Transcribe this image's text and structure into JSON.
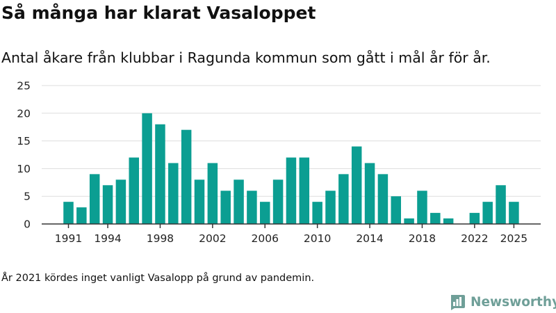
{
  "title": "Så många har klarat Vasaloppet",
  "subtitle": "Antal åkare från klubbar i Ragunda kommun som gått i mål år för år.",
  "footnote": "År 2021 kördes inget vanligt Vasalopp på grund av pandemin.",
  "brand": {
    "name": "Newsworthy",
    "icon": "newsworthy-logo-icon"
  },
  "colors": {
    "bar": "#0b9e92",
    "grid": "#dddddd",
    "axis": "#333333",
    "brand": "#6f9f98"
  },
  "chart_data": {
    "type": "bar",
    "categories": [
      1991,
      1992,
      1993,
      1994,
      1995,
      1996,
      1997,
      1998,
      1999,
      2000,
      2001,
      2002,
      2003,
      2004,
      2005,
      2006,
      2007,
      2008,
      2009,
      2010,
      2011,
      2012,
      2013,
      2014,
      2015,
      2016,
      2017,
      2018,
      2019,
      2020,
      2021,
      2022,
      2023,
      2024,
      2025
    ],
    "values": [
      4,
      3,
      9,
      7,
      8,
      12,
      20,
      18,
      11,
      17,
      8,
      11,
      6,
      8,
      6,
      4,
      8,
      12,
      12,
      4,
      6,
      9,
      14,
      11,
      9,
      5,
      1,
      6,
      2,
      1,
      0,
      2,
      4,
      7,
      4
    ],
    "x_tick_labels": [
      "1991",
      "1994",
      "1998",
      "2002",
      "2006",
      "2010",
      "2014",
      "2018",
      "2022",
      "2025"
    ],
    "y_ticks": [
      0,
      5,
      10,
      15,
      20,
      25
    ],
    "ylim": [
      0,
      25
    ],
    "xlabel": "",
    "ylabel": "",
    "grid": true,
    "legend": "none"
  }
}
